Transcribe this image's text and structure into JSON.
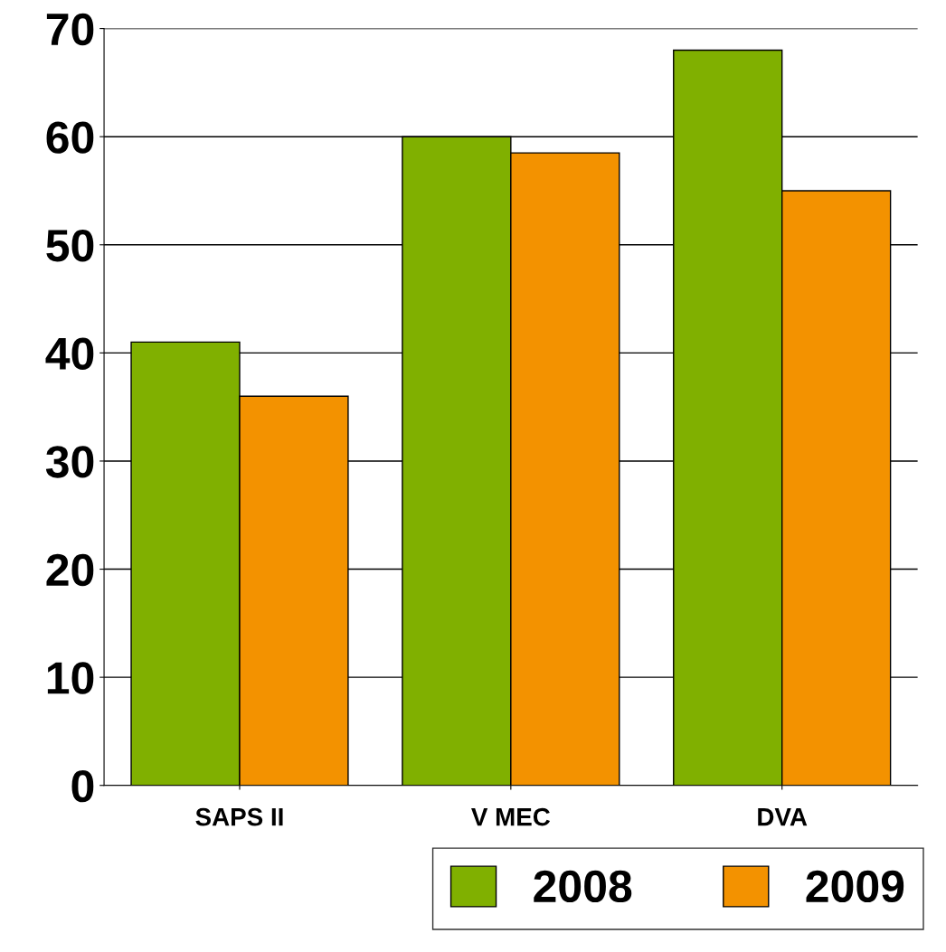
{
  "chart_data": {
    "type": "bar",
    "categories": [
      "SAPS II",
      "V MEC",
      "DVA"
    ],
    "series": [
      {
        "name": "2008",
        "color": "#80b000",
        "values": [
          41,
          60,
          68
        ]
      },
      {
        "name": "2009",
        "color": "#f39200",
        "values": [
          36,
          58.5,
          55
        ]
      }
    ],
    "ylim": [
      0,
      70
    ],
    "yticks": [
      0,
      10,
      20,
      30,
      40,
      50,
      60,
      70
    ],
    "grid": "y",
    "legend": "bottom right"
  }
}
